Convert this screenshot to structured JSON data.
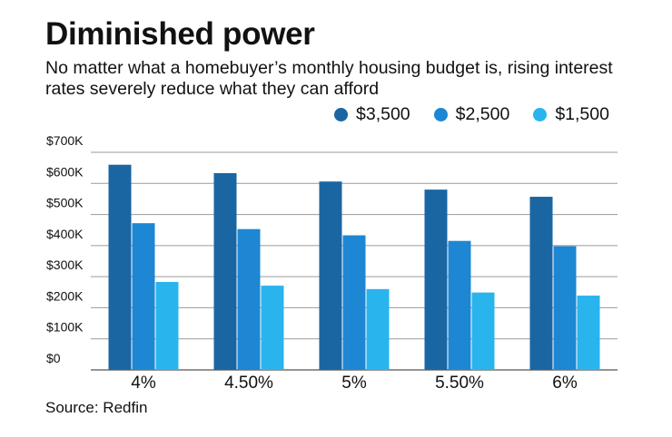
{
  "header": {
    "title": "Diminished power",
    "subtitle": "No matter what a homebuyer’s monthly housing budget is, rising interest rates severely reduce what they can afford"
  },
  "source": "Source: Redfin",
  "legend": [
    {
      "label": "$3,500",
      "color": "#1a66a3"
    },
    {
      "label": "$2,500",
      "color": "#1d87d3"
    },
    {
      "label": "$1,500",
      "color": "#2ab4ee"
    }
  ],
  "chart_data": {
    "type": "bar",
    "title": "Diminished power",
    "subtitle": "No matter what a homebuyer’s monthly housing budget is, rising interest rates severely reduce what they can afford",
    "categories": [
      "4%",
      "4.50%",
      "5%",
      "5.50%",
      "6%"
    ],
    "series": [
      {
        "name": "$3,500",
        "color": "#1a66a3",
        "values": [
          660000,
          633000,
          606000,
          580000,
          557000
        ]
      },
      {
        "name": "$2,500",
        "color": "#1d87d3",
        "values": [
          472000,
          453000,
          433000,
          415000,
          398000
        ]
      },
      {
        "name": "$1,500",
        "color": "#2ab4ee",
        "values": [
          283000,
          271000,
          260000,
          249000,
          239000
        ]
      }
    ],
    "yticks": [
      "$0",
      "$100K",
      "$200K",
      "$300K",
      "$400K",
      "$500K",
      "$600K",
      "$700K"
    ],
    "ylim": [
      0,
      700000
    ],
    "xlabel": "",
    "ylabel": "",
    "grid": true,
    "legend_position": "top-right"
  }
}
